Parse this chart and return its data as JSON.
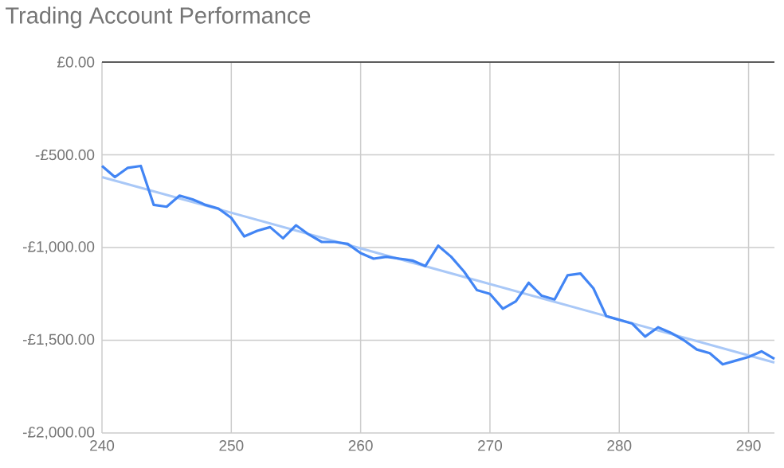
{
  "chart_data": {
    "type": "line",
    "title": "Trading Account Performance",
    "x": [
      240,
      241,
      242,
      243,
      244,
      245,
      246,
      247,
      248,
      249,
      250,
      251,
      252,
      253,
      254,
      255,
      256,
      257,
      258,
      259,
      260,
      261,
      262,
      263,
      264,
      265,
      266,
      267,
      268,
      269,
      270,
      271,
      272,
      273,
      274,
      275,
      276,
      277,
      278,
      279,
      280,
      281,
      282,
      283,
      284,
      285,
      286,
      287,
      288,
      289,
      290,
      291,
      292
    ],
    "series": [
      {
        "color": "#4285f4",
        "values": [
          -560,
          -620,
          -570,
          -560,
          -770,
          -780,
          -720,
          -740,
          -770,
          -790,
          -840,
          -940,
          -910,
          -890,
          -950,
          -880,
          -930,
          -970,
          -970,
          -980,
          -1030,
          -1060,
          -1050,
          -1060,
          -1070,
          -1100,
          -990,
          -1050,
          -1130,
          -1230,
          -1250,
          -1330,
          -1290,
          -1190,
          -1260,
          -1280,
          -1150,
          -1140,
          -1220,
          -1370,
          -1390,
          -1410,
          -1480,
          -1430,
          -1460,
          -1500,
          -1550,
          -1570,
          -1630,
          -1610,
          -1590,
          -1560,
          -1600
        ]
      },
      {
        "type": "line",
        "color": "#a9c8f7",
        "x": [
          240,
          292
        ],
        "values": [
          -620,
          -1620
        ]
      }
    ],
    "xlim": [
      240,
      292
    ],
    "ylim": [
      -2000,
      0
    ],
    "xticks": [
      240,
      250,
      260,
      270,
      280,
      290
    ],
    "yticks": [
      {
        "value": -2000,
        "label": "-£2,000.00"
      },
      {
        "value": -1500,
        "label": "-£1,500.00"
      },
      {
        "value": -1000,
        "label": "-£1,000.00"
      },
      {
        "value": -500,
        "label": "-£500.00"
      },
      {
        "value": 0,
        "label": "£0.00"
      }
    ],
    "ref_lines": [
      {
        "axis": "y",
        "value": 0,
        "color": "#333333"
      }
    ],
    "grid": true
  }
}
